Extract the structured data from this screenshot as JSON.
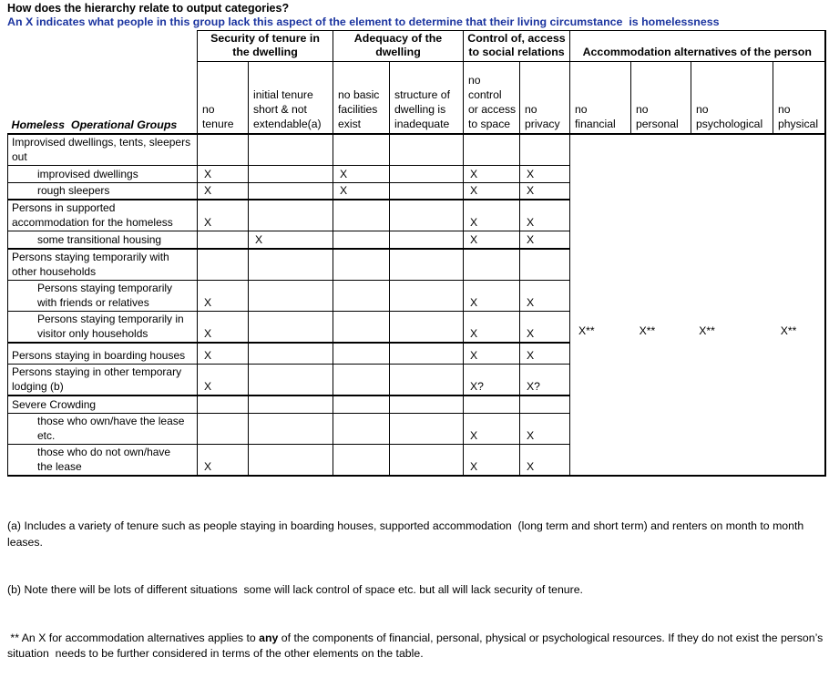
{
  "page": {
    "title": "How does the hierarchy relate to output categories?",
    "subtitle": "An X indicates what people in this group lack this aspect of the element to determine that their living circumstance  is homelessness",
    "subtitle_color": "#1C35A0",
    "border_color": "#000000",
    "background_color": "#FFFFFF"
  },
  "table": {
    "row_label_header": "Homeless  Operational Groups",
    "groups": [
      {
        "label": "Security of tenure in\nthe dwelling"
      },
      {
        "label": "Adequacy of the\ndwelling"
      },
      {
        "label": "Control of, access\nto social relations"
      },
      {
        "label": "Accommodation alternatives of the person"
      }
    ],
    "columns": [
      {
        "label": "no\ntenure"
      },
      {
        "label": "initial tenure\nshort & not\nextendable(a)"
      },
      {
        "label": "no basic\nfacilities\nexist"
      },
      {
        "label": "structure of\ndwelling is\ninadequate"
      },
      {
        "label": "no\ncontrol\nor access\nto space"
      },
      {
        "label": "no\nprivacy"
      },
      {
        "label": "no\nfinancial"
      },
      {
        "label": "no\npersonal"
      },
      {
        "label": "no\npsychological"
      },
      {
        "label": "no\nphysical"
      }
    ],
    "rows": [
      {
        "label": "Improvised dwellings, tents, sleepers\nout",
        "indent": false,
        "section_start": true,
        "marks": [
          "",
          "",
          "",
          "",
          "",
          ""
        ]
      },
      {
        "label": "improvised dwellings",
        "indent": true,
        "section_start": false,
        "marks": [
          "X",
          "",
          "X",
          "",
          "X",
          "X"
        ]
      },
      {
        "label": "rough sleepers",
        "indent": true,
        "section_start": false,
        "marks": [
          "X",
          "",
          "X",
          "",
          "X",
          "X"
        ]
      },
      {
        "label": "Persons in supported\naccommodation for the homeless",
        "indent": false,
        "section_start": true,
        "marks": [
          "X",
          "",
          "",
          "",
          "X",
          "X"
        ]
      },
      {
        "label": "some transitional housing",
        "indent": true,
        "section_start": false,
        "marks": [
          "",
          "X",
          "",
          "",
          "X",
          "X"
        ]
      },
      {
        "label": "Persons staying temporarily with\nother households",
        "indent": false,
        "section_start": true,
        "marks": [
          "",
          "",
          "",
          "",
          "",
          ""
        ]
      },
      {
        "label": "Persons staying temporarily\nwith friends or relatives",
        "indent": true,
        "section_start": false,
        "marks": [
          "X",
          "",
          "",
          "",
          "X",
          "X"
        ]
      },
      {
        "label": "Persons staying temporarily in\nvisitor only households",
        "indent": true,
        "section_start": false,
        "marks": [
          "X",
          "",
          "",
          "",
          "X",
          "X"
        ]
      },
      {
        "label": "Persons staying in boarding houses",
        "indent": false,
        "section_start": true,
        "marks": [
          "X",
          "",
          "",
          "",
          "X",
          "X"
        ]
      },
      {
        "label": "Persons staying in other temporary\nlodging (b)",
        "indent": false,
        "section_start": false,
        "marks": [
          "X",
          "",
          "",
          "",
          "X?",
          "X?"
        ]
      },
      {
        "label": "Severe Crowding",
        "indent": false,
        "section_start": true,
        "marks": [
          "",
          "",
          "",
          "",
          "",
          ""
        ]
      },
      {
        "label": "those who own/have the lease\netc.",
        "indent": true,
        "section_start": false,
        "marks": [
          "",
          "",
          "",
          "",
          "X",
          "X"
        ]
      },
      {
        "label": "those who do not own/have\nthe lease",
        "indent": true,
        "section_start": false,
        "marks": [
          "X",
          "",
          "",
          "",
          "X",
          "X"
        ]
      }
    ],
    "accommodation_marks": [
      "X**",
      "X**",
      "X**",
      "X**"
    ]
  },
  "footnotes": {
    "a": "(a) Includes a variety of tenure such as people staying in boarding houses, supported accommodation  (long term and short term) and renters on month to month leases.",
    "b": "(b) Note there will be lots of different situations  some will lack control of space etc. but all will lack security of tenure.",
    "star_prefix": " ** An X for accommodation alternatives applies to ",
    "star_bold": "any",
    "star_suffix": " of the components of financial, personal, physical or psychological resources. If they do not exist the person’s situation  needs to be further considered in terms of the other elements on the table."
  }
}
